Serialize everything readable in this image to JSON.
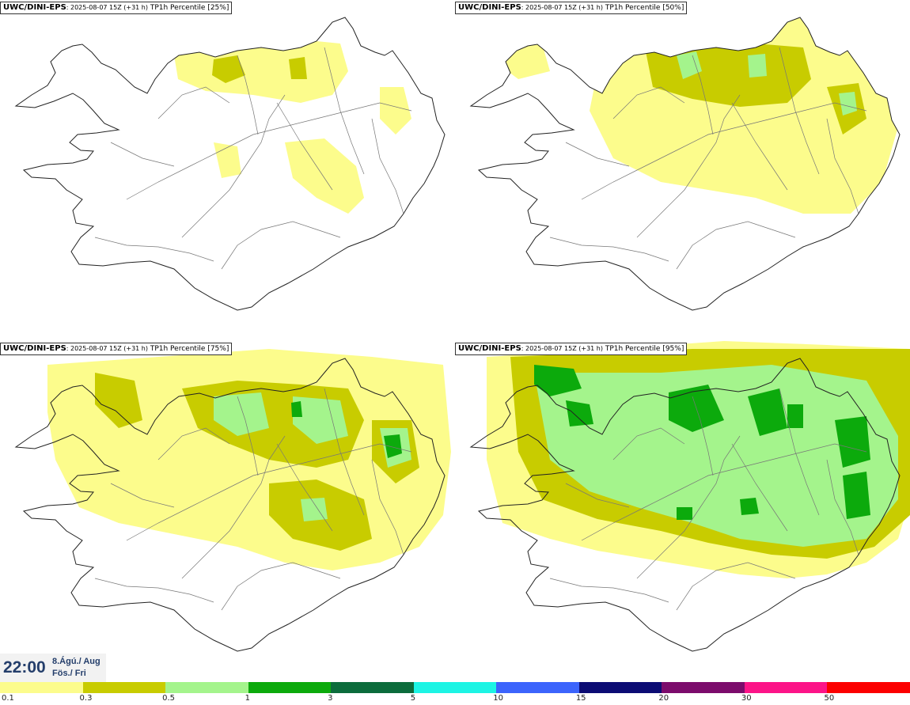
{
  "panels": [
    {
      "model": "UWC/DINI-EPS",
      "run": ": 2025-08-07 15Z (+31 h)",
      "field": " TP1h Percentile [25%]",
      "intensity": 0
    },
    {
      "model": "UWC/DINI-EPS",
      "run": ": 2025-08-07 15Z (+31 h)",
      "field": " TP1h Percentile [50%]",
      "intensity": 1
    },
    {
      "model": "UWC/DINI-EPS",
      "run": ": 2025-08-07 15Z (+31 h)",
      "field": " TP1h Percentile [75%]",
      "intensity": 2
    },
    {
      "model": "UWC/DINI-EPS",
      "run": ": 2025-08-07 15Z (+31 h)",
      "field": " TP1h Percentile [95%]",
      "intensity": 3
    }
  ],
  "valid_time": {
    "time": "22:00",
    "date": "8.Ágú./ Aug",
    "day": "Fös./ Fri"
  },
  "legend": {
    "labels": [
      "0.1",
      "0.3",
      "0.5",
      "1",
      "3",
      "5",
      "10",
      "15",
      "20",
      "30",
      "50"
    ],
    "colors": [
      "#fcfc8c",
      "#c8cc00",
      "#a4f48c",
      "#0caa0c",
      "#0c6c3c",
      "#1cf4e4",
      "#3c64fc",
      "#0c0c74",
      "#7c0c6c",
      "#fc1488",
      "#fc0000"
    ]
  }
}
